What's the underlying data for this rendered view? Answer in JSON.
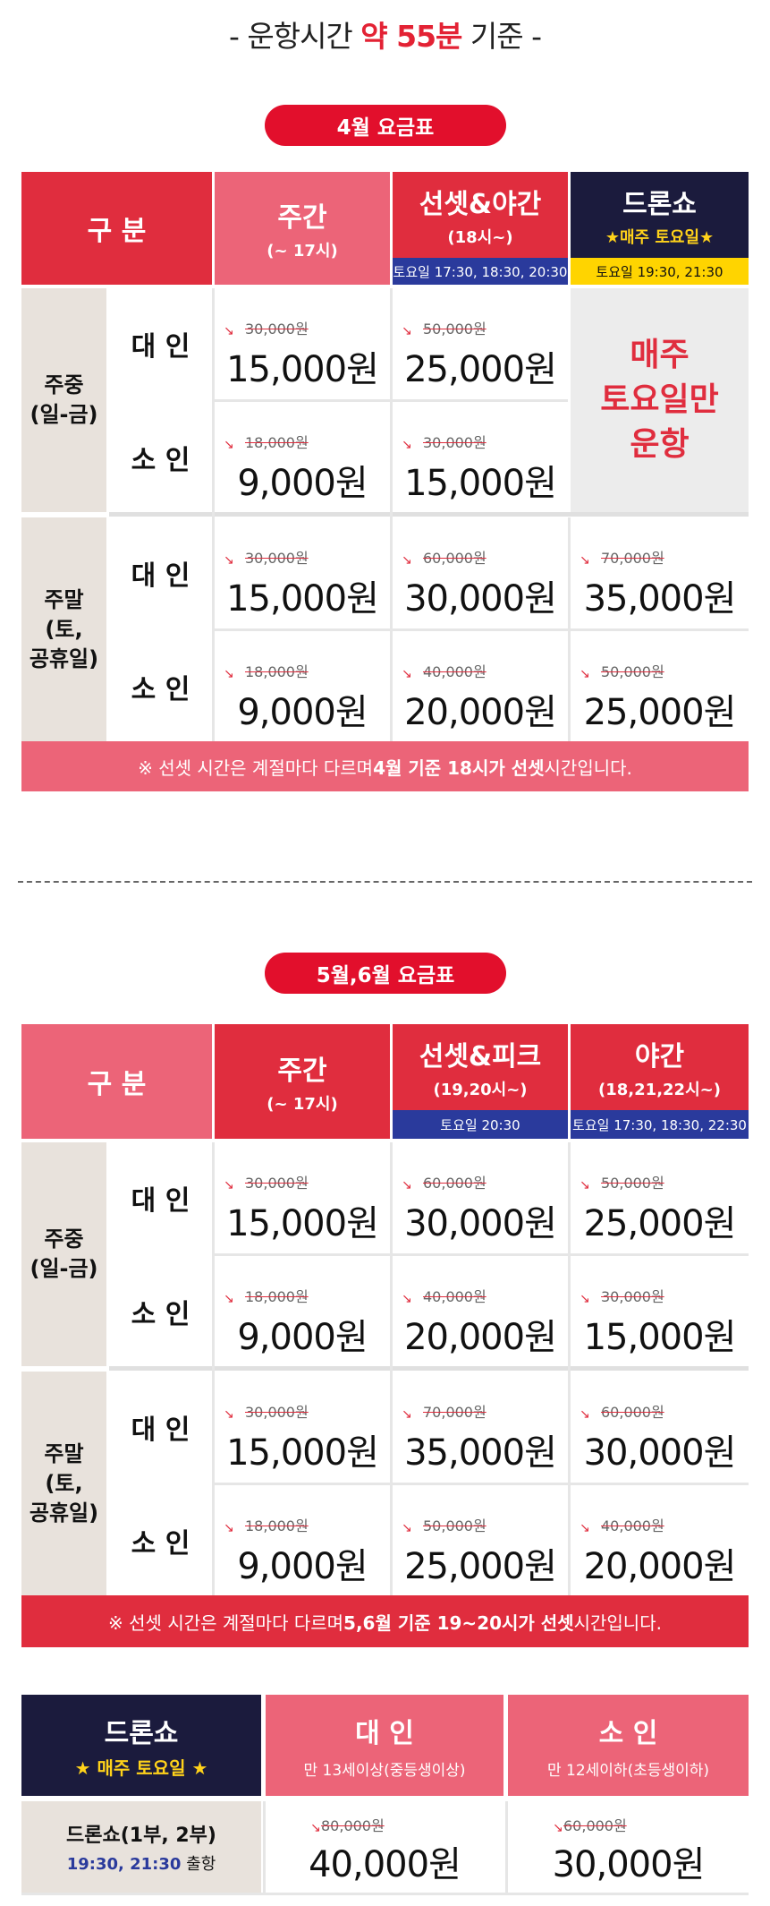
{
  "header": {
    "prefix": "- 운항시간 ",
    "highlight": "약 55분",
    "suffix": " 기준 -"
  },
  "april": {
    "title": "4월 요금표",
    "col_gubun": "구 분",
    "col1": {
      "title": "주간",
      "sub": "(~ 17시)"
    },
    "col2": {
      "title": "선셋&야간",
      "sub": "(18시~)",
      "strip": "토요일 17:30, 18:30, 20:30"
    },
    "col3": {
      "title": "드론쇼",
      "sub": "★매주 토요일★",
      "strip": "토요일 19:30, 21:30"
    },
    "weekday": "주중\n(일-금)",
    "weekend": "주말\n(토,\n공휴일)",
    "adult": "대 인",
    "child": "소 인",
    "saturday_only": "매주\n토요일만\n운항",
    "rows": [
      {
        "c1_old": "30,000원",
        "c1_new": "15,000원",
        "c2_old": "50,000원",
        "c2_new": "25,000원"
      },
      {
        "c1_old": "18,000원",
        "c1_new": "9,000원",
        "c2_old": "30,000원",
        "c2_new": "15,000원"
      },
      {
        "c1_old": "30,000원",
        "c1_new": "15,000원",
        "c2_old": "60,000원",
        "c2_new": "30,000원",
        "c3_old": "70,000원",
        "c3_new": "35,000원"
      },
      {
        "c1_old": "18,000원",
        "c1_new": "9,000원",
        "c2_old": "40,000원",
        "c2_new": "20,000원",
        "c3_old": "50,000원",
        "c3_new": "25,000원"
      }
    ],
    "note_pre": "※ 선셋 시간은 계절마다 다르며 ",
    "note_bold": "4월 기준  18시가 선셋",
    "note_post": "시간입니다."
  },
  "mayjune": {
    "title": "5월,6월 요금표",
    "col_gubun": "구 분",
    "col1": {
      "title": "주간",
      "sub": "(~ 17시)"
    },
    "col2": {
      "title": "선셋&피크",
      "sub": "(19,20시~)",
      "strip": "토요일  20:30"
    },
    "col3": {
      "title": "야간",
      "sub": "(18,21,22시~)",
      "strip": "토요일 17:30, 18:30, 22:30"
    },
    "weekday": "주중\n(일-금)",
    "weekend": "주말\n(토,\n공휴일)",
    "adult": "대 인",
    "child": "소 인",
    "rows": [
      {
        "c1_old": "30,000원",
        "c1_new": "15,000원",
        "c2_old": "60,000원",
        "c2_new": "30,000원",
        "c3_old": "50,000원",
        "c3_new": "25,000원"
      },
      {
        "c1_old": "18,000원",
        "c1_new": "9,000원",
        "c2_old": "40,000원",
        "c2_new": "20,000원",
        "c3_old": "30,000원",
        "c3_new": "15,000원"
      },
      {
        "c1_old": "30,000원",
        "c1_new": "15,000원",
        "c2_old": "70,000원",
        "c2_new": "35,000원",
        "c3_old": "60,000원",
        "c3_new": "30,000원"
      },
      {
        "c1_old": "18,000원",
        "c1_new": "9,000원",
        "c2_old": "50,000원",
        "c2_new": "25,000원",
        "c3_old": "40,000원",
        "c3_new": "20,000원"
      }
    ],
    "note_pre": "※ 선셋 시간은 계절마다 다르며 ",
    "note_bold": "5,6월 기준 19~20시가 선셋",
    "note_post": "시간입니다."
  },
  "drone": {
    "title": "드론쇼",
    "sub": "★ 매주 토요일 ★",
    "adult": {
      "title": "대 인",
      "sub": "만 13세이상(중등생이상)"
    },
    "child": {
      "title": "소 인",
      "sub": "만 12세이하(초등생이하)"
    },
    "row_label": "드론쇼(1부, 2부)",
    "row_time_bold": "19:30, 21:30",
    "row_time_suffix": " 출항",
    "adult_old": "80,000원",
    "adult_new": "40,000원",
    "child_old": "60,000원",
    "child_new": "30,000원"
  },
  "colors": {
    "red": "#e02d3e",
    "pink": "#ec6478",
    "navy": "#1b1b3d",
    "beige": "#e8e2dc",
    "yellow": "#ffd400",
    "blue": "#2a3a9c"
  }
}
